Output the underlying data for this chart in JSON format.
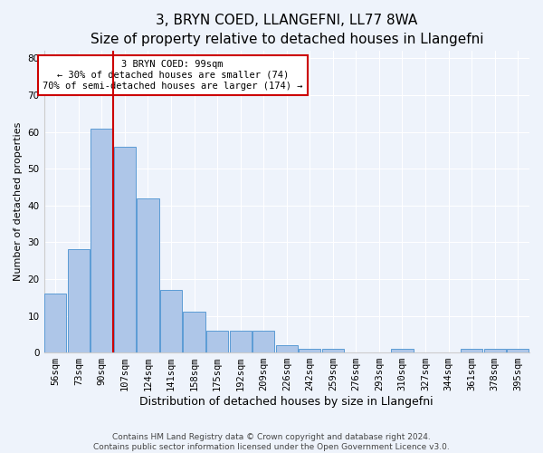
{
  "title": "3, BRYN COED, LLANGEFNI, LL77 8WA",
  "subtitle": "Size of property relative to detached houses in Llangefni",
  "xlabel": "Distribution of detached houses by size in Llangefni",
  "ylabel": "Number of detached properties",
  "categories": [
    "56sqm",
    "73sqm",
    "90sqm",
    "107sqm",
    "124sqm",
    "141sqm",
    "158sqm",
    "175sqm",
    "192sqm",
    "209sqm",
    "226sqm",
    "242sqm",
    "259sqm",
    "276sqm",
    "293sqm",
    "310sqm",
    "327sqm",
    "344sqm",
    "361sqm",
    "378sqm",
    "395sqm"
  ],
  "values": [
    16,
    28,
    61,
    56,
    42,
    17,
    11,
    6,
    6,
    6,
    2,
    1,
    1,
    0,
    0,
    1,
    0,
    0,
    1,
    1,
    1
  ],
  "bar_color": "#aec6e8",
  "bar_edge_color": "#5b9bd5",
  "red_line_x": 2.5,
  "annotation_text": "3 BRYN COED: 99sqm\n← 30% of detached houses are smaller (74)\n70% of semi-detached houses are larger (174) →",
  "annotation_box_color": "#ffffff",
  "annotation_box_edge_color": "#cc0000",
  "ylim": [
    0,
    82
  ],
  "yticks": [
    0,
    10,
    20,
    30,
    40,
    50,
    60,
    70,
    80
  ],
  "title_fontsize": 11,
  "xlabel_fontsize": 9,
  "ylabel_fontsize": 8,
  "tick_fontsize": 7.5,
  "annotation_fontsize": 7.5,
  "footer_text": "Contains HM Land Registry data © Crown copyright and database right 2024.\nContains public sector information licensed under the Open Government Licence v3.0.",
  "footer_fontsize": 6.5,
  "background_color": "#eef3fb",
  "plot_bg_color": "#eef3fb",
  "grid_color": "#ffffff"
}
